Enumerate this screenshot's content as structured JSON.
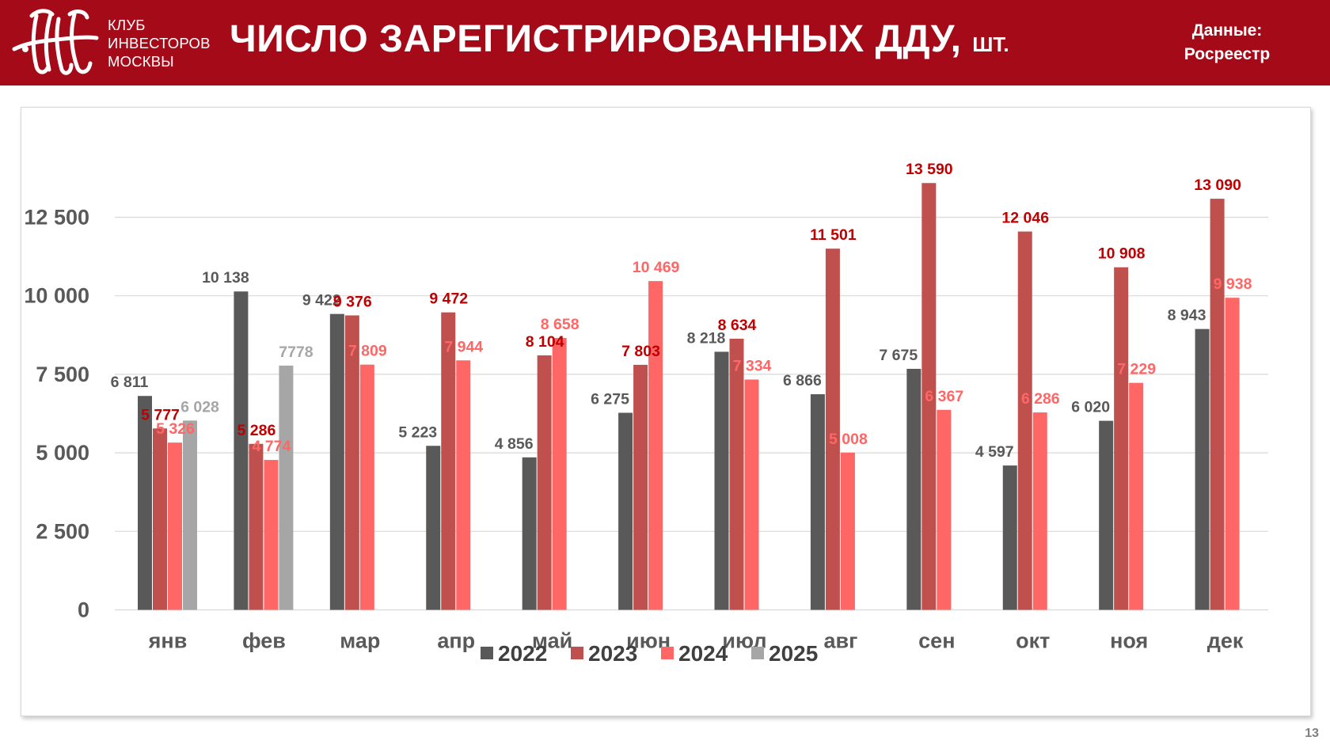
{
  "header": {
    "club_name": [
      "КЛУБ",
      "ИНВЕСТОРОВ",
      "МОСКВЫ"
    ],
    "title": "ЧИСЛО ЗАРЕГИСТРИРОВАННЫХ ДДУ,",
    "title_unit": "ШТ.",
    "source_label": "Данные:",
    "source_name": "Росреестр",
    "background_color": "#a50a19",
    "logo_icon": "kim-monogram-icon"
  },
  "page_number": "13",
  "chart_data": {
    "type": "bar",
    "categories": [
      "янв",
      "фев",
      "мар",
      "апр",
      "май",
      "июн",
      "июл",
      "авг",
      "сен",
      "окт",
      "ноя",
      "дек"
    ],
    "series": [
      {
        "name": "2022",
        "color": "#595959",
        "label_color": "#595959",
        "values": [
          6811,
          10138,
          9422,
          5223,
          4856,
          6275,
          8218,
          6866,
          7675,
          4597,
          6020,
          8943
        ],
        "labels": [
          "6 811",
          "10 138",
          "9 422",
          "5 223",
          "4 856",
          "6 275",
          "8 218",
          "6 866",
          "7 675",
          "4 597",
          "6 020",
          "8 943"
        ]
      },
      {
        "name": "2023",
        "color": "#c0504d",
        "label_color": "#c00000",
        "values": [
          5777,
          5286,
          9376,
          9472,
          8104,
          7803,
          8634,
          11501,
          13590,
          12046,
          10908,
          13090
        ],
        "labels": [
          "5 777",
          "5 286",
          "9 376",
          "9 472",
          "8 104",
          "7 803",
          "8 634",
          "11 501",
          "13 590",
          "12 046",
          "10 908",
          "13 090"
        ]
      },
      {
        "name": "2024",
        "color": "#ff6666",
        "label_color": "#ff6666",
        "values": [
          5326,
          4774,
          7809,
          7944,
          8658,
          10469,
          7334,
          5008,
          6367,
          6286,
          7229,
          9938
        ],
        "labels": [
          "5 326",
          "4 774",
          "7 809",
          "7 944",
          "8 658",
          "10 469",
          "7 334",
          "5 008",
          "6 367",
          "6 286",
          "7 229",
          "9 938"
        ]
      },
      {
        "name": "2025",
        "color": "#a6a6a6",
        "label_color": "#a6a6a6",
        "values": [
          6028,
          7778,
          null,
          null,
          null,
          null,
          null,
          null,
          null,
          null,
          null,
          null
        ],
        "labels": [
          "6 028",
          "7778",
          null,
          null,
          null,
          null,
          null,
          null,
          null,
          null,
          null,
          null
        ]
      }
    ],
    "y_ticks": [
      "0",
      "2 500",
      "5 000",
      "7 500",
      "10 000",
      "12 500"
    ],
    "ylim": [
      0,
      15000
    ],
    "grid": true,
    "legend_position": "bottom"
  }
}
